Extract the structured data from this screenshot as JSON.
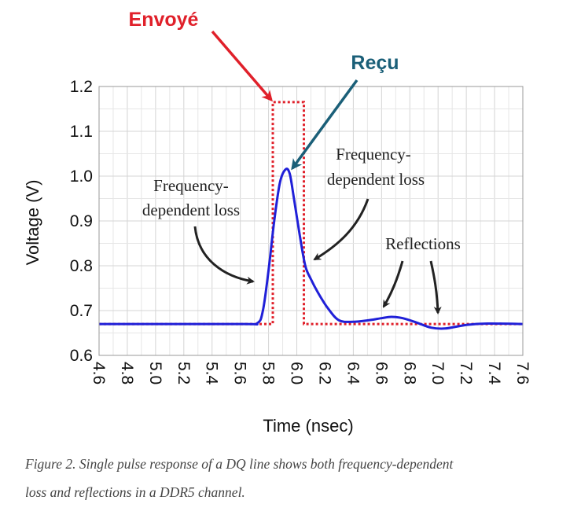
{
  "chart_data": {
    "type": "line",
    "title": "",
    "xlabel": "Time (nsec)",
    "ylabel": "Voltage (V)",
    "xlim": [
      4.6,
      7.6
    ],
    "ylim": [
      0.6,
      1.2
    ],
    "x_ticks": [
      "4.6",
      "4.8",
      "5.0",
      "5.2",
      "5.4",
      "5.6",
      "5.8",
      "6.0",
      "6.2",
      "6.4",
      "6.6",
      "6.8",
      "7.0",
      "7.2",
      "7.4",
      "7.6"
    ],
    "y_ticks": [
      "0.6",
      "0.7",
      "0.8",
      "0.9",
      "1.0",
      "1.1",
      "1.2"
    ],
    "grid": true,
    "series": [
      {
        "name": "Envoyé",
        "color": "#e0202a",
        "style": "dotted",
        "x": [
          4.6,
          5.83,
          5.83,
          6.05,
          6.05,
          7.6
        ],
        "y": [
          0.67,
          0.67,
          1.165,
          1.165,
          0.67,
          0.67
        ]
      },
      {
        "name": "Reçu",
        "color": "#2020d8",
        "style": "solid",
        "x": [
          4.6,
          5.6,
          5.72,
          5.76,
          5.8,
          5.84,
          5.88,
          5.92,
          5.95,
          5.98,
          6.02,
          6.06,
          6.1,
          6.15,
          6.22,
          6.3,
          6.4,
          6.5,
          6.6,
          6.67,
          6.75,
          6.85,
          6.95,
          7.05,
          7.2,
          7.35,
          7.6
        ],
        "y": [
          0.67,
          0.67,
          0.672,
          0.7,
          0.79,
          0.9,
          0.985,
          1.015,
          1.005,
          0.95,
          0.87,
          0.8,
          0.77,
          0.74,
          0.705,
          0.678,
          0.675,
          0.678,
          0.683,
          0.686,
          0.683,
          0.673,
          0.662,
          0.66,
          0.668,
          0.671,
          0.67
        ]
      }
    ],
    "annotations": [
      {
        "text": "Frequency-",
        "x": 5.3,
        "y": 0.99
      },
      {
        "text": "dependent loss",
        "x": 5.3,
        "y": 0.94
      },
      {
        "text": "Frequency-",
        "x": 6.52,
        "y": 1.04
      },
      {
        "text": "dependent loss",
        "x": 6.52,
        "y": 0.99
      },
      {
        "text": "Reflections",
        "x": 6.87,
        "y": 0.84
      }
    ],
    "header_labels": [
      {
        "text": "Envoyé",
        "color": "#e0202a"
      },
      {
        "text": "Reçu",
        "color": "#1a5f78"
      }
    ]
  },
  "caption": {
    "line1": "Figure 2. Single pulse response of a DQ line shows both frequency-dependent",
    "line2": "loss and reflections in a DDR5 channel."
  }
}
